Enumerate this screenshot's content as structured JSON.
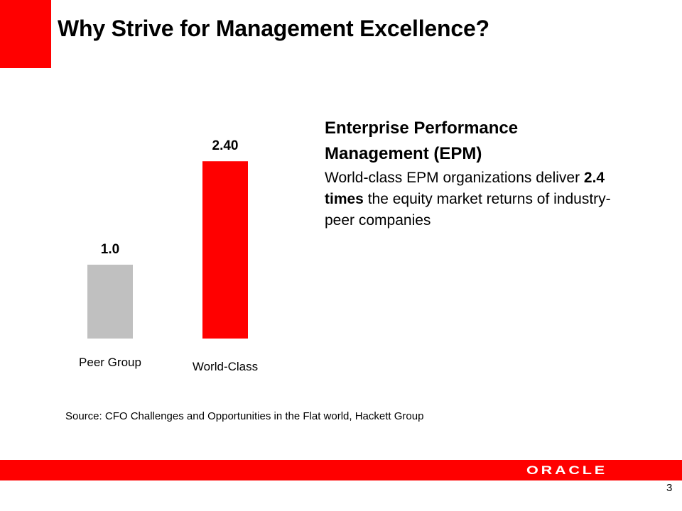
{
  "slide": {
    "title": "Why Strive for Management Excellence?",
    "accent_color": "#ff0000",
    "page_number": "3"
  },
  "text_block": {
    "heading": "Enterprise Performance Management (EPM)",
    "body_before": "World-class EPM organizations deliver ",
    "body_bold": "2.4 times",
    "body_after": " the equity market returns of industry-peer companies"
  },
  "source": "Source: CFO Challenges and Opportunities in the Flat world, Hackett Group",
  "logo": {
    "text": "ORACLE",
    "icon": "oracle-logo"
  },
  "chart_data": {
    "type": "bar",
    "categories": [
      "Peer Group",
      "World-Class"
    ],
    "values": [
      1.0,
      2.4
    ],
    "data_labels": [
      "1.0",
      "2.40"
    ],
    "colors": [
      "#c0c0c0",
      "#ff0000"
    ],
    "title": "",
    "xlabel": "",
    "ylabel": "",
    "ylim": [
      0,
      2.7
    ],
    "grid": false
  }
}
